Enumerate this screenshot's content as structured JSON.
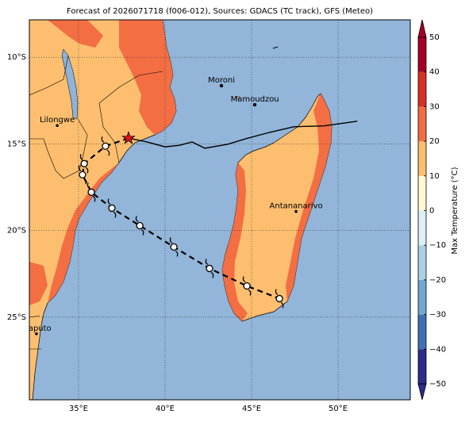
{
  "chart_data": {
    "type": "map",
    "title": "Forecast of 2026071718 (f006-012), Sources: GDACS (TC track), GFS (Meteo)",
    "xlim": [
      32.16,
      54.17
    ],
    "ylim": [
      -29.77,
      -7.84
    ],
    "xticks": [
      {
        "value": 35,
        "label": "35°E"
      },
      {
        "value": 40,
        "label": "40°E"
      },
      {
        "value": 45,
        "label": "45°E"
      },
      {
        "value": 50,
        "label": "50°E"
      }
    ],
    "yticks": [
      {
        "value": -10,
        "label": "10°S"
      },
      {
        "value": -15,
        "label": "15°S"
      },
      {
        "value": -20,
        "label": "20°S"
      },
      {
        "value": -25,
        "label": "25°S"
      }
    ],
    "grid": true,
    "cities": [
      {
        "name": "Moroni",
        "lon": 43.26,
        "lat": -11.65
      },
      {
        "name": "Mamoudzou",
        "lon": 45.19,
        "lat": -12.75
      },
      {
        "name": "Lilongwe",
        "lon": 33.77,
        "lat": -13.94
      },
      {
        "name": "Antananarivo",
        "lon": 47.57,
        "lat": -18.9
      },
      {
        "name": "Maputo",
        "lon": 32.57,
        "lat": -25.96
      }
    ],
    "current_position": {
      "lon": 37.89,
      "lat": -14.67
    },
    "observed_track": {
      "lon": [
        37.89,
        38.95,
        40.0,
        40.83,
        41.56,
        42.3,
        43.63,
        44.68,
        46.06,
        47.44,
        49.18,
        51.11
      ],
      "lat": [
        -14.67,
        -14.89,
        -15.17,
        -15.08,
        -14.89,
        -15.25,
        -15.02,
        -14.7,
        -14.33,
        -14.01,
        -13.96,
        -13.69
      ]
    },
    "forecast_track": {
      "lon": [
        37.89,
        36.56,
        35.33,
        35.23,
        35.74,
        36.93,
        38.54,
        40.51,
        42.57,
        44.73,
        46.61
      ],
      "lat": [
        -14.67,
        -15.13,
        -16.14,
        -16.78,
        -17.79,
        -18.71,
        -19.72,
        -20.95,
        -22.19,
        -23.2,
        -23.93
      ]
    },
    "colorbar": {
      "label": "Max Temperature (°C)",
      "lim": [
        -50,
        50
      ],
      "ticks": [
        {
          "value": -50,
          "label": "−50"
        },
        {
          "value": -40,
          "label": "−40"
        },
        {
          "value": -30,
          "label": "−30"
        },
        {
          "value": -20,
          "label": "−20"
        },
        {
          "value": -10,
          "label": "−10"
        },
        0,
        10,
        20,
        30,
        40,
        50
      ],
      "colors": [
        "#2b2c8c",
        "#4170b2",
        "#73a7d0",
        "#a9d0e5",
        "#dcf0f6",
        "#fffbd0",
        "#fdbf6f",
        "#f46e43",
        "#d73027",
        "#a50026"
      ]
    }
  }
}
